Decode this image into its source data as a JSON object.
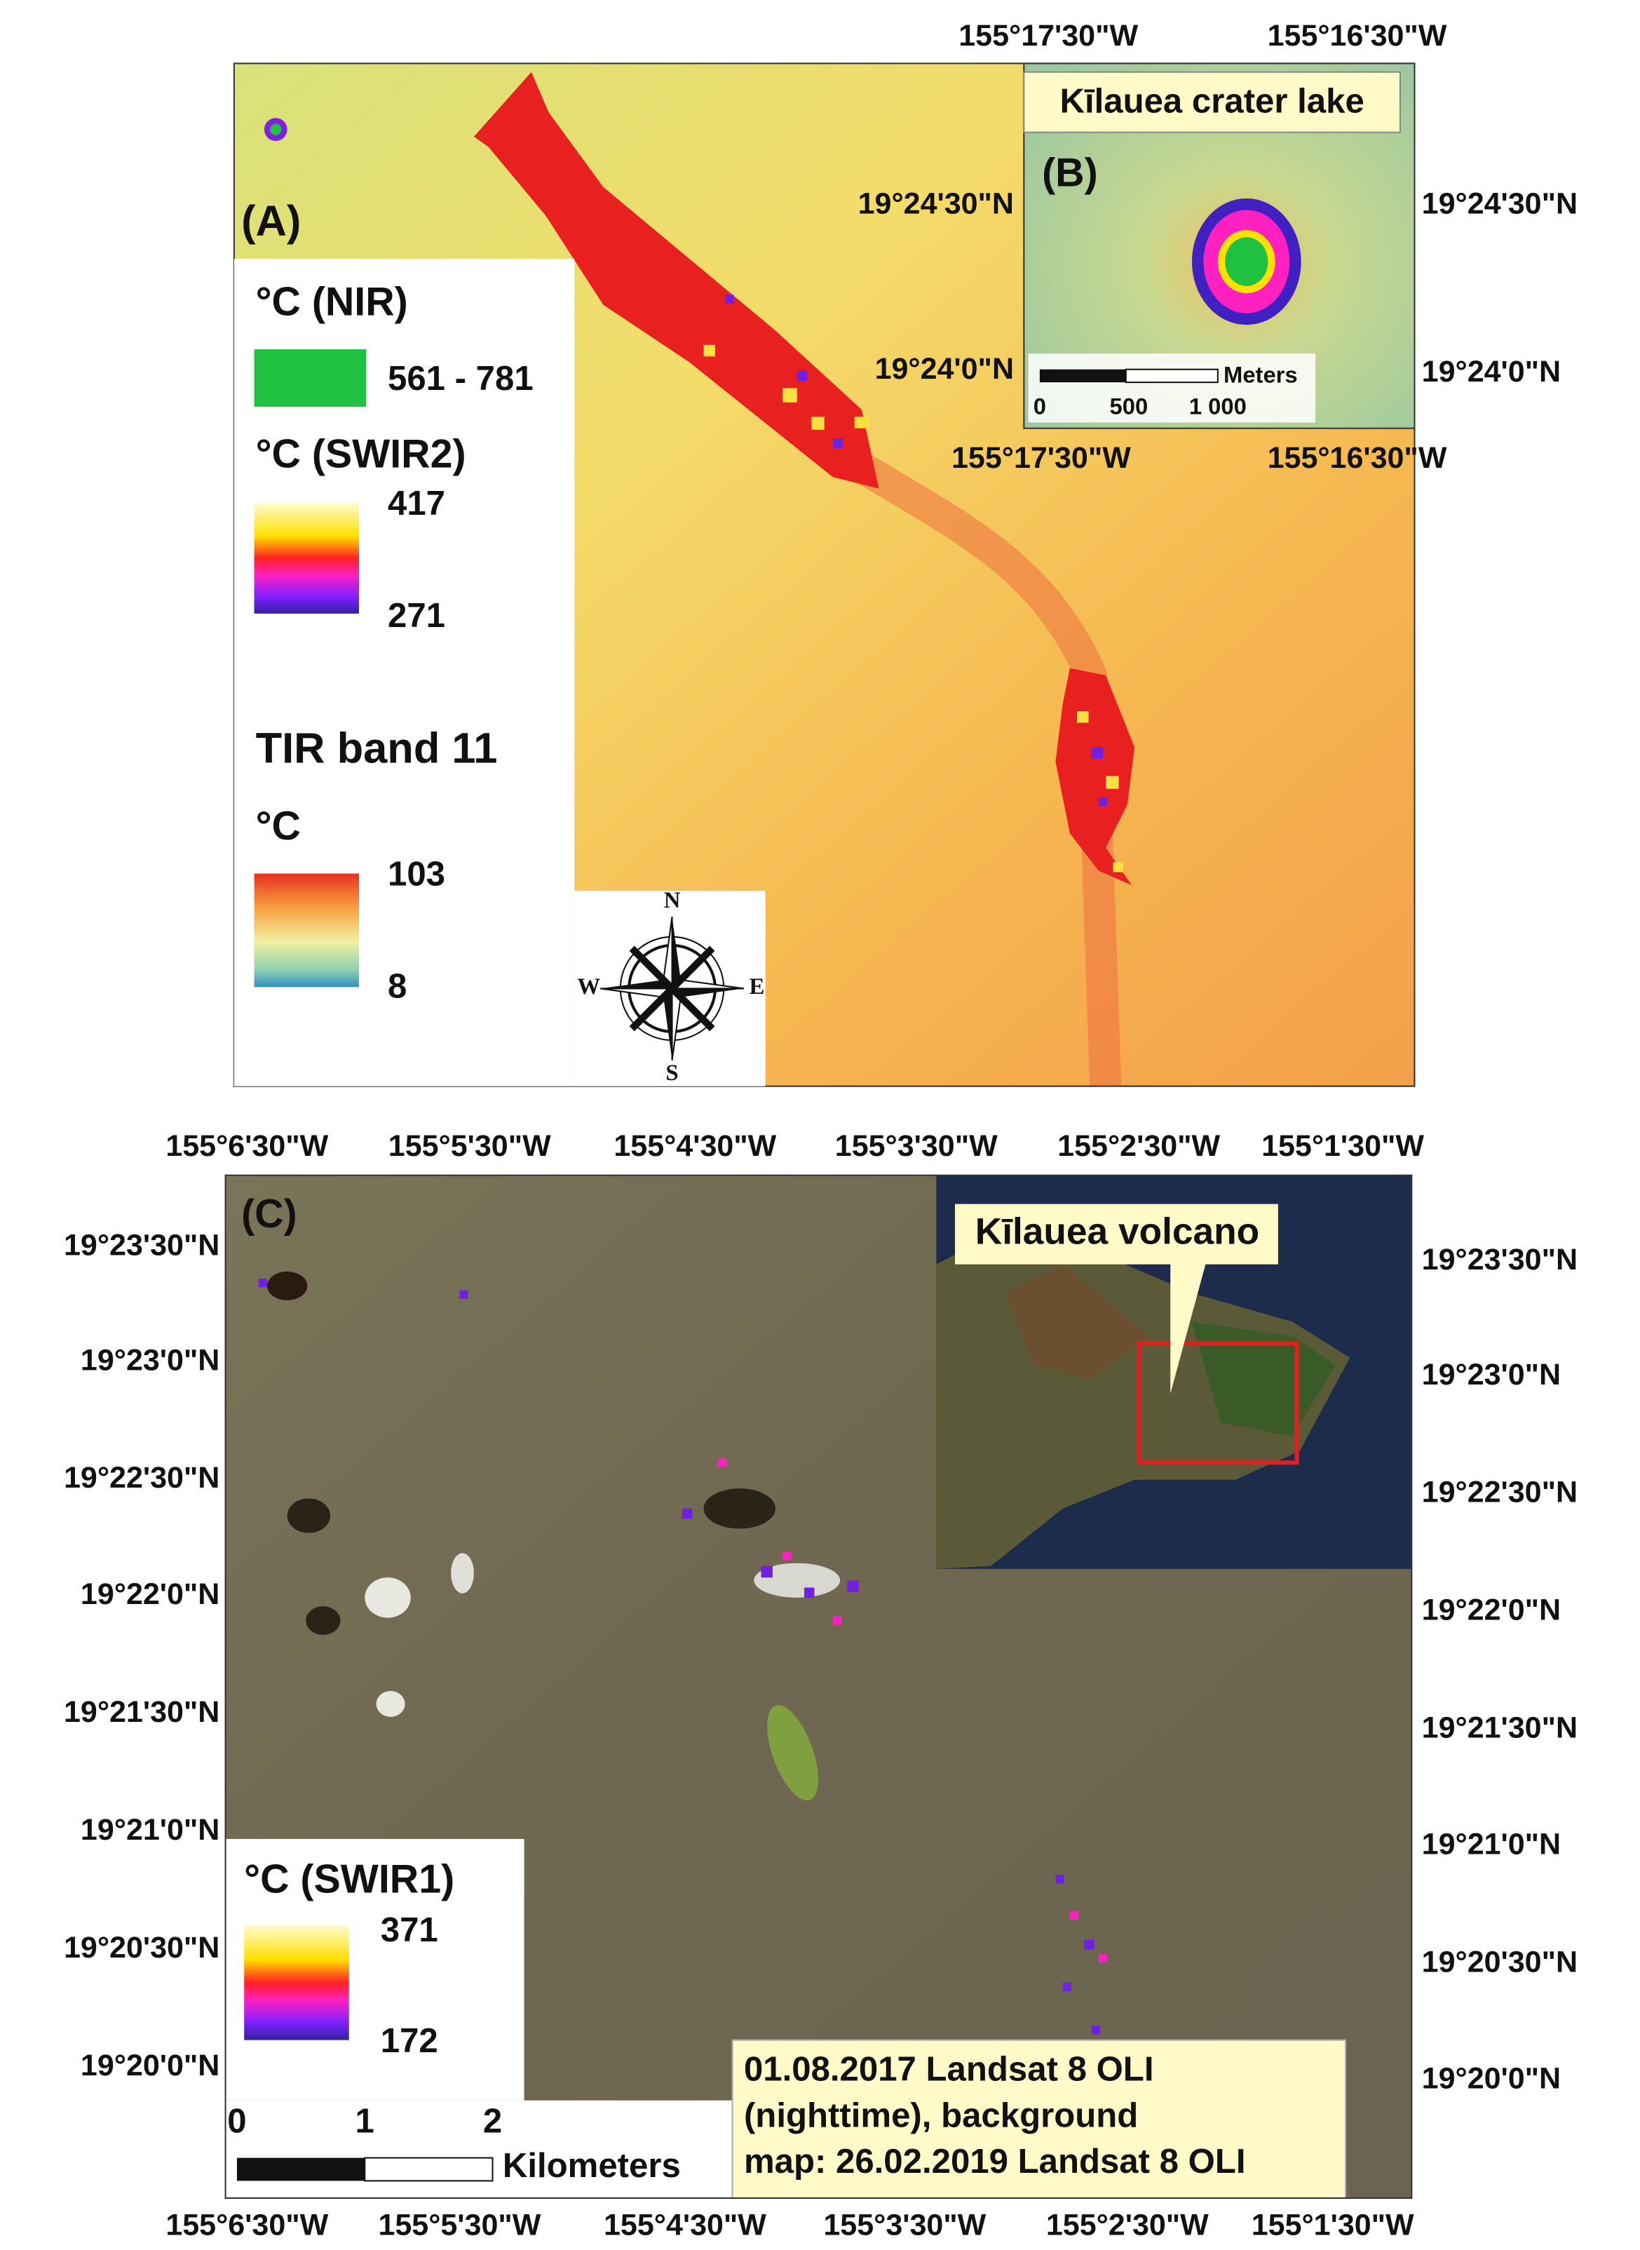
{
  "panel_a": {
    "label": "(A)",
    "top_longitudes": [
      "155°17'30\"W",
      "155°16'30\"W"
    ],
    "legend": {
      "nir_title": "°C (NIR)",
      "nir_range": "561 - 781",
      "swir2_title": "°C (SWIR2)",
      "swir2_max": "417",
      "swir2_min": "271",
      "tir_title": "TIR band 11",
      "tir_unit": "°C",
      "tir_max": "103",
      "tir_min": "8"
    },
    "compass": {
      "n": "N",
      "e": "E",
      "s": "S",
      "w": "W"
    }
  },
  "panel_b": {
    "label": "(B)",
    "title": "Kīlauea crater lake",
    "left_latitudes": [
      "19°24'30\"N",
      "19°24'0\"N"
    ],
    "right_latitudes": [
      "19°24'30\"N",
      "19°24'0\"N"
    ],
    "bottom_longitudes": [
      "155°17'30\"W",
      "155°16'30\"W"
    ],
    "scale_unit": "Meters",
    "scale_ticks": [
      "0",
      "500",
      "1 000"
    ]
  },
  "panel_c": {
    "label": "(C)",
    "top_longitudes": [
      "155°6'30\"W",
      "155°5'30\"W",
      "155°4'30\"W",
      "155°3'30\"W",
      "155°2'30\"W",
      "155°1'30\"W"
    ],
    "bottom_longitudes": [
      "155°6'30\"W",
      "155°5'30\"W",
      "155°4'30\"W",
      "155°3'30\"W",
      "155°2'30\"W",
      "155°1'30\"W"
    ],
    "left_latitudes": [
      "19°23'30\"N",
      "19°23'0\"N",
      "19°22'30\"N",
      "19°22'0\"N",
      "19°21'30\"N",
      "19°21'0\"N",
      "19°20'30\"N",
      "19°20'0\"N"
    ],
    "right_latitudes": [
      "19°23'30\"N",
      "19°23'0\"N",
      "19°22'30\"N",
      "19°22'0\"N",
      "19°21'30\"N",
      "19°21'0\"N",
      "19°20'30\"N",
      "19°20'0\"N"
    ],
    "inset_title": "Kīlauea volcano",
    "legend": {
      "title": "°C (SWIR1)",
      "max": "371",
      "min": "172"
    },
    "scale_ticks": [
      "0",
      "1",
      "2"
    ],
    "scale_unit": "Kilometers",
    "caption": [
      "01.08.2017 Landsat 8 OLI",
      "(nighttime), background",
      "map: 26.02.2019 Landsat 8 OLI"
    ]
  }
}
